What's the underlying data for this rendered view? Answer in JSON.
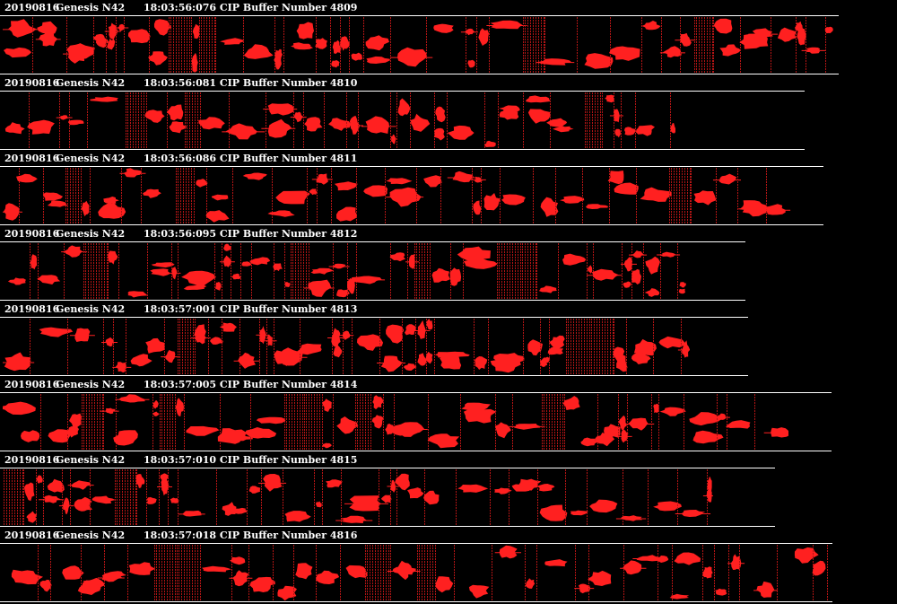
{
  "colors": {
    "background": "#000000",
    "text": "#ffffff",
    "rule": "#ffffff",
    "particle": "#ff2020",
    "slice_edge": "#b31515"
  },
  "panels": [
    {
      "date": "20190816",
      "probe": "Genesis N42",
      "time_info": "18:03:56:076 CIP Buffer Number 4809"
    },
    {
      "date": "20190816",
      "probe": "Genesis N42",
      "time_info": "18:03:56:081 CIP Buffer Number 4810"
    },
    {
      "date": "20190816",
      "probe": "Genesis N42",
      "time_info": "18:03:56:086 CIP Buffer Number 4811"
    },
    {
      "date": "20190816",
      "probe": "Genesis N42",
      "time_info": "18:03:56:095 CIP Buffer Number 4812"
    },
    {
      "date": "20190816",
      "probe": "Genesis N42",
      "time_info": "18:03:57:001 CIP Buffer Number 4813"
    },
    {
      "date": "20190816",
      "probe": "Genesis N42",
      "time_info": "18:03:57:005 CIP Buffer Number 4814"
    },
    {
      "date": "20190816",
      "probe": "Genesis N42",
      "time_info": "18:03:57:010 CIP Buffer Number 4815"
    },
    {
      "date": "20190816",
      "probe": "Genesis N42",
      "time_info": "18:03:57:018 CIP Buffer Number 4816"
    }
  ]
}
